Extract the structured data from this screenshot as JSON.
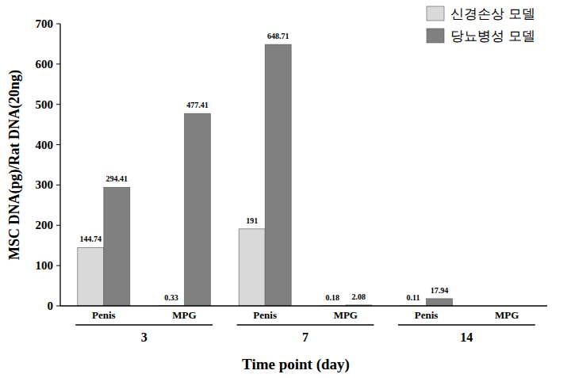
{
  "chart_data": {
    "type": "bar",
    "x_label": "Time point (day)",
    "y_label": "MSC DNA(pg)/Rat DNA(20ng)",
    "categories": [
      "Penis",
      "MPG",
      "Penis",
      "MPG",
      "Penis",
      "MPG"
    ],
    "groups": [
      "3",
      "7",
      "14"
    ],
    "series": [
      {
        "name": "신경손상 모델",
        "color": "#d9d9d9",
        "values": [
          144.74,
          0.33,
          191,
          0.18,
          0.11,
          null
        ]
      },
      {
        "name": "당뇨병성 모델",
        "color": "#808080",
        "values": [
          294.41,
          477.41,
          648.71,
          2.08,
          17.94,
          null
        ]
      }
    ],
    "ylim": [
      0,
      700
    ],
    "yticks": [
      0,
      100,
      200,
      300,
      400,
      500,
      600,
      700
    ],
    "grid": false,
    "legend": "top-right",
    "data_labels": true
  }
}
